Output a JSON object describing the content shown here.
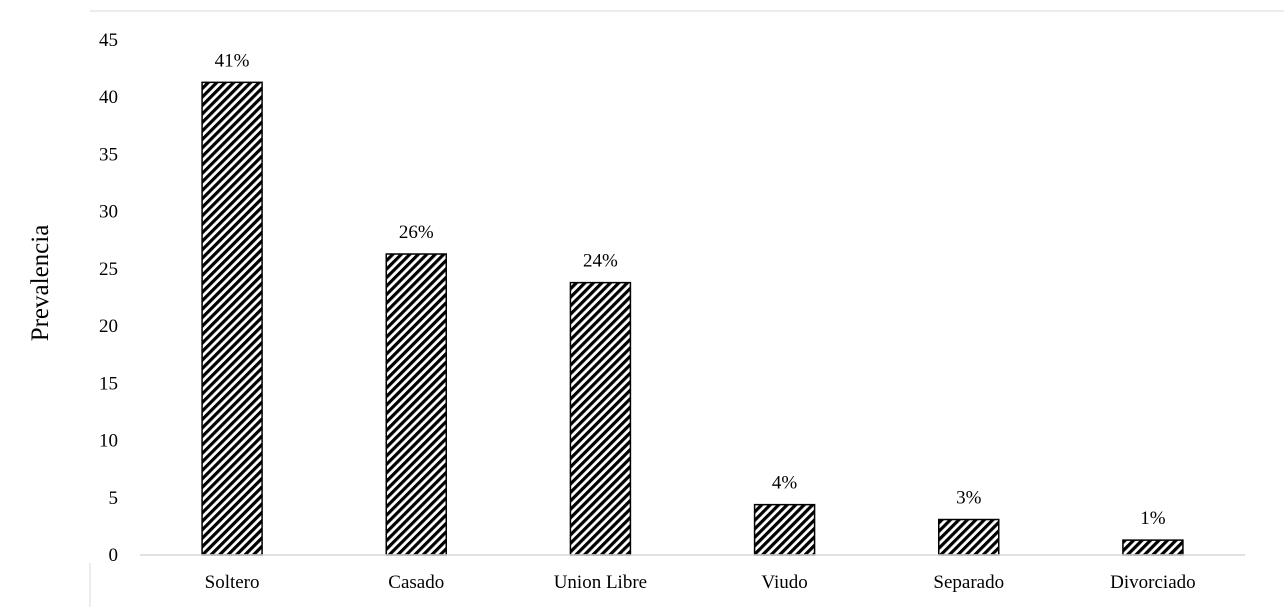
{
  "chart_data": {
    "type": "bar",
    "title": "",
    "xlabel": "",
    "ylabel": "Prevalencia",
    "ylim": [
      0,
      45
    ],
    "yticks": [
      0,
      5,
      10,
      15,
      20,
      25,
      30,
      35,
      40,
      45
    ],
    "grid": false,
    "legend": "none",
    "bar_fill": "diagonal-hatch",
    "colors": {
      "bar_stroke": "#000000",
      "hatch": "#000000",
      "axis": "#d9d9d9"
    },
    "categories": [
      "Soltero",
      "Casado",
      "Union Libre",
      "Viudo",
      "Separado",
      "Divorciado"
    ],
    "values": [
      41.3,
      26.3,
      23.8,
      4.4,
      3.1,
      1.3
    ],
    "data_labels": [
      "41%",
      "26%",
      "24%",
      "4%",
      "3%",
      "1%"
    ]
  }
}
